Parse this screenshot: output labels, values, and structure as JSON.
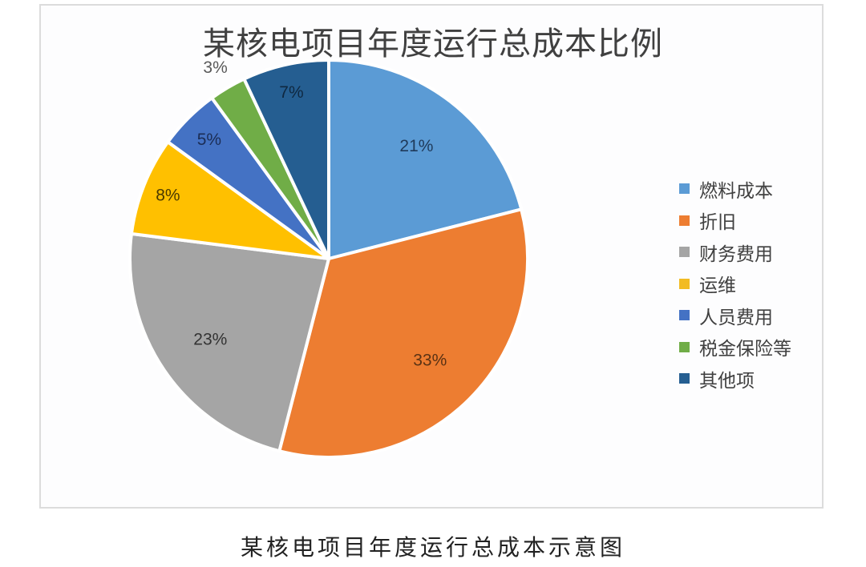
{
  "chart_data": {
    "type": "pie",
    "title": "某核电项目年度运行总成本比例",
    "categories": [
      "燃料成本",
      "折旧",
      "财务费用",
      "运维",
      "人员费用",
      "税金保险等",
      "其他项"
    ],
    "values": [
      21,
      33,
      23,
      8,
      5,
      3,
      7
    ],
    "unit": "%",
    "data_labels": [
      "21%",
      "33%",
      "23%",
      "8%",
      "5%",
      "3%",
      "7%"
    ],
    "colors": [
      "#5b9bd5",
      "#ed7d31",
      "#a5a5a5",
      "#ffc000",
      "#4472c4",
      "#70ad47",
      "#255e91"
    ],
    "start_angle": "12 o'clock",
    "direction": "clockwise",
    "legend_position": "right"
  },
  "chart": {
    "title": "某核电项目年度运行总成本比例"
  },
  "legend": {
    "items": [
      {
        "label": "燃料成本",
        "color": "#5b9bd5"
      },
      {
        "label": "折旧",
        "color": "#ed7d31"
      },
      {
        "label": "财务费用",
        "color": "#a5a5a5"
      },
      {
        "label": "运维",
        "color": "#f2bb22"
      },
      {
        "label": "人员费用",
        "color": "#4472c4"
      },
      {
        "label": "税金保险等",
        "color": "#70ad47"
      },
      {
        "label": "其他项",
        "color": "#255e91"
      }
    ]
  },
  "caption": "某核电项目年度运行总成本示意图"
}
